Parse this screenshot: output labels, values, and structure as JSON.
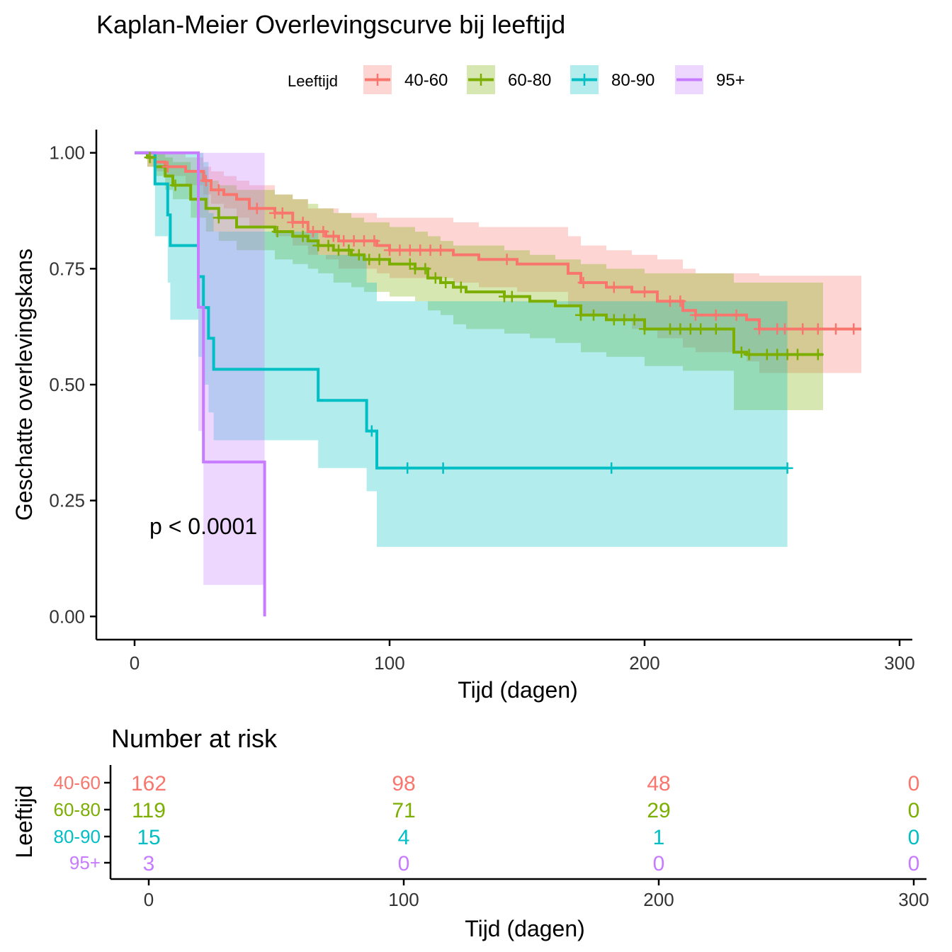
{
  "chart_data": {
    "type": "line",
    "title": "Kaplan-Meier Overlevingscurve bij leeftijd",
    "xlabel": "Tijd (dagen)",
    "ylabel": "Geschatte overlevingskans",
    "xlim": [
      -15,
      305
    ],
    "ylim": [
      -0.05,
      1.05
    ],
    "x_ticks": [
      0,
      100,
      200,
      300
    ],
    "y_ticks": [
      0,
      0.25,
      0.5,
      0.75,
      1.0
    ],
    "y_tick_labels": [
      "0.00",
      "0.25",
      "0.50",
      "0.75",
      "1.00"
    ],
    "grid": false,
    "legend": {
      "title": "Leeftijd",
      "position": "top",
      "entries": [
        "40-60",
        "60-80",
        "80-90",
        "95+"
      ]
    },
    "annotation": "p < 0.0001",
    "colors": {
      "40-60": "#F8766D",
      "60-80": "#7CAE00",
      "80-90": "#00BFC4",
      "95+": "#C77CFF"
    },
    "series": [
      {
        "name": "40-60",
        "time": [
          0,
          5,
          8,
          12,
          20,
          27,
          30,
          35,
          40,
          45,
          55,
          62,
          68,
          75,
          80,
          95,
          100,
          125,
          135,
          150,
          170,
          175,
          185,
          195,
          205,
          215,
          220,
          240,
          245,
          285
        ],
        "surv": [
          1.0,
          0.99,
          0.98,
          0.97,
          0.96,
          0.94,
          0.92,
          0.91,
          0.9,
          0.88,
          0.87,
          0.85,
          0.83,
          0.82,
          0.81,
          0.8,
          0.79,
          0.78,
          0.77,
          0.76,
          0.74,
          0.72,
          0.71,
          0.7,
          0.68,
          0.66,
          0.65,
          0.64,
          0.62,
          0.62
        ],
        "lower": [
          1.0,
          0.97,
          0.96,
          0.95,
          0.93,
          0.91,
          0.89,
          0.88,
          0.86,
          0.84,
          0.82,
          0.8,
          0.78,
          0.77,
          0.75,
          0.74,
          0.73,
          0.72,
          0.71,
          0.7,
          0.67,
          0.65,
          0.64,
          0.62,
          0.6,
          0.58,
          0.57,
          0.55,
          0.525,
          0.525
        ],
        "upper": [
          1.0,
          1.0,
          1.0,
          1.0,
          0.99,
          0.97,
          0.96,
          0.95,
          0.94,
          0.93,
          0.91,
          0.9,
          0.88,
          0.88,
          0.87,
          0.86,
          0.86,
          0.85,
          0.84,
          0.84,
          0.82,
          0.8,
          0.79,
          0.78,
          0.77,
          0.75,
          0.74,
          0.74,
          0.735,
          0.735
        ],
        "censored": [
          13,
          28,
          33,
          48,
          55,
          58,
          62,
          66,
          70,
          74,
          78,
          82,
          86,
          90,
          94,
          100,
          104,
          108,
          112,
          116,
          120,
          146,
          176,
          188,
          200,
          210,
          214,
          220,
          228,
          236,
          245,
          252,
          255,
          262,
          268,
          275,
          282
        ]
      },
      {
        "name": "60-80",
        "time": [
          0,
          5,
          8,
          12,
          15,
          22,
          28,
          33,
          40,
          55,
          62,
          68,
          72,
          78,
          85,
          90,
          100,
          110,
          115,
          120,
          125,
          130,
          145,
          155,
          165,
          175,
          185,
          200,
          215,
          235,
          240,
          270
        ],
        "surv": [
          1.0,
          0.99,
          0.97,
          0.95,
          0.93,
          0.9,
          0.88,
          0.86,
          0.84,
          0.83,
          0.82,
          0.81,
          0.8,
          0.79,
          0.78,
          0.77,
          0.76,
          0.75,
          0.73,
          0.72,
          0.71,
          0.7,
          0.69,
          0.68,
          0.67,
          0.65,
          0.64,
          0.62,
          0.62,
          0.57,
          0.565,
          0.565
        ],
        "lower": [
          1.0,
          0.97,
          0.95,
          0.92,
          0.9,
          0.86,
          0.83,
          0.81,
          0.79,
          0.77,
          0.76,
          0.75,
          0.74,
          0.72,
          0.71,
          0.7,
          0.69,
          0.68,
          0.66,
          0.65,
          0.63,
          0.62,
          0.61,
          0.6,
          0.59,
          0.57,
          0.56,
          0.54,
          0.53,
          0.445,
          0.445,
          0.445
        ],
        "upper": [
          1.0,
          1.0,
          1.0,
          0.99,
          0.98,
          0.96,
          0.94,
          0.93,
          0.92,
          0.91,
          0.9,
          0.89,
          0.88,
          0.87,
          0.86,
          0.85,
          0.84,
          0.83,
          0.82,
          0.81,
          0.8,
          0.8,
          0.79,
          0.78,
          0.77,
          0.76,
          0.75,
          0.74,
          0.74,
          0.72,
          0.72,
          0.72
        ],
        "censored": [
          6,
          16,
          33,
          56,
          66,
          72,
          76,
          80,
          84,
          88,
          92,
          96,
          108,
          110,
          114,
          118,
          122,
          128,
          145,
          148,
          175,
          180,
          188,
          192,
          196,
          200,
          210,
          214,
          218,
          222,
          228,
          238,
          241,
          248,
          252,
          256,
          260,
          268
        ]
      },
      {
        "name": "80-90",
        "time": [
          0,
          8,
          13,
          14,
          25,
          27,
          29,
          31,
          72,
          91,
          95,
          256
        ],
        "surv": [
          1.0,
          0.933,
          0.866,
          0.8,
          0.733,
          0.666,
          0.6,
          0.533,
          0.466,
          0.4,
          0.32,
          0.32
        ],
        "lower": [
          1.0,
          0.82,
          0.72,
          0.64,
          0.56,
          0.5,
          0.44,
          0.38,
          0.32,
          0.27,
          0.15,
          0.15
        ],
        "upper": [
          1.0,
          1.0,
          1.0,
          1.0,
          1.0,
          0.98,
          0.87,
          0.83,
          0.78,
          0.72,
          0.68,
          0.68
        ],
        "censored": [
          93,
          107,
          121,
          187,
          256
        ]
      },
      {
        "name": "95+",
        "time": [
          0,
          25,
          27,
          51,
          51
        ],
        "surv": [
          1.0,
          0.667,
          0.333,
          0.333,
          0.0
        ],
        "lower": [
          1.0,
          0.4,
          0.068,
          0.068,
          0.0
        ],
        "upper": [
          1.0,
          1.0,
          1.0,
          1.0,
          0.0
        ],
        "band_end": 51,
        "censored": []
      }
    ],
    "risk_table": {
      "title": "Number at risk",
      "ylabel": "Leeftijd",
      "xlabel": "Tijd (dagen)",
      "x_ticks": [
        0,
        100,
        200,
        300
      ],
      "rows": [
        {
          "name": "40-60",
          "values": [
            "162",
            "98",
            "48",
            "0"
          ]
        },
        {
          "name": "60-80",
          "values": [
            "119",
            "71",
            "29",
            "0"
          ]
        },
        {
          "name": "80-90",
          "values": [
            "15",
            "4",
            "1",
            "0"
          ]
        },
        {
          "name": "95+",
          "values": [
            "3",
            "0",
            "0",
            "0"
          ]
        }
      ]
    }
  }
}
